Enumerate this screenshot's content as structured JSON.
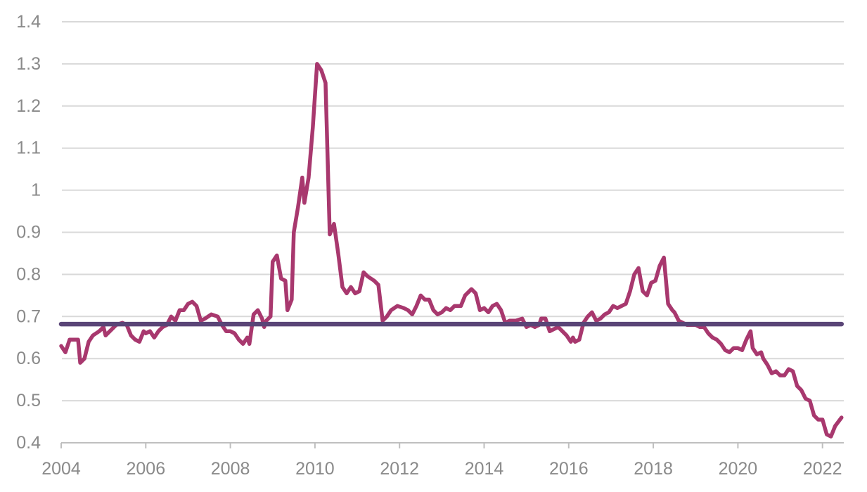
{
  "chart_data": {
    "type": "line",
    "title": "",
    "xlabel": "",
    "ylabel": "",
    "xlim": [
      2004,
      2022.45
    ],
    "ylim": [
      0.4,
      1.4
    ],
    "yticks": [
      "0.4",
      "0.5",
      "0.6",
      "0.7",
      "0.8",
      "0.9",
      "1",
      "1.1",
      "1.2",
      "1.3",
      "1.4"
    ],
    "xticks": [
      "2004",
      "2006",
      "2008",
      "2010",
      "2012",
      "2014",
      "2016",
      "2018",
      "2020",
      "2022"
    ],
    "grid": "horizontal",
    "legend": "none",
    "series": [
      {
        "color": "#a8386e",
        "points": [
          [
            2004.0,
            0.63
          ],
          [
            2004.1,
            0.615
          ],
          [
            2004.2,
            0.645
          ],
          [
            2004.3,
            0.645
          ],
          [
            2004.4,
            0.645
          ],
          [
            2004.45,
            0.59
          ],
          [
            2004.55,
            0.6
          ],
          [
            2004.65,
            0.64
          ],
          [
            2004.75,
            0.655
          ],
          [
            2004.9,
            0.665
          ],
          [
            2005.0,
            0.675
          ],
          [
            2005.05,
            0.655
          ],
          [
            2005.15,
            0.665
          ],
          [
            2005.3,
            0.68
          ],
          [
            2005.45,
            0.685
          ],
          [
            2005.55,
            0.68
          ],
          [
            2005.65,
            0.655
          ],
          [
            2005.75,
            0.645
          ],
          [
            2005.85,
            0.64
          ],
          [
            2005.95,
            0.665
          ],
          [
            2006.0,
            0.66
          ],
          [
            2006.1,
            0.665
          ],
          [
            2006.2,
            0.65
          ],
          [
            2006.3,
            0.665
          ],
          [
            2006.4,
            0.675
          ],
          [
            2006.5,
            0.68
          ],
          [
            2006.6,
            0.7
          ],
          [
            2006.7,
            0.69
          ],
          [
            2006.8,
            0.715
          ],
          [
            2006.9,
            0.715
          ],
          [
            2007.0,
            0.73
          ],
          [
            2007.1,
            0.735
          ],
          [
            2007.2,
            0.725
          ],
          [
            2007.3,
            0.69
          ],
          [
            2007.4,
            0.695
          ],
          [
            2007.55,
            0.705
          ],
          [
            2007.7,
            0.7
          ],
          [
            2007.8,
            0.68
          ],
          [
            2007.9,
            0.665
          ],
          [
            2008.0,
            0.665
          ],
          [
            2008.1,
            0.66
          ],
          [
            2008.2,
            0.645
          ],
          [
            2008.3,
            0.635
          ],
          [
            2008.4,
            0.65
          ],
          [
            2008.45,
            0.635
          ],
          [
            2008.55,
            0.705
          ],
          [
            2008.65,
            0.715
          ],
          [
            2008.75,
            0.695
          ],
          [
            2008.8,
            0.675
          ],
          [
            2008.85,
            0.69
          ],
          [
            2008.95,
            0.7
          ],
          [
            2009.0,
            0.83
          ],
          [
            2009.1,
            0.845
          ],
          [
            2009.2,
            0.79
          ],
          [
            2009.3,
            0.785
          ],
          [
            2009.35,
            0.715
          ],
          [
            2009.45,
            0.74
          ],
          [
            2009.5,
            0.9
          ],
          [
            2009.6,
            0.96
          ],
          [
            2009.7,
            1.03
          ],
          [
            2009.75,
            0.97
          ],
          [
            2009.85,
            1.03
          ],
          [
            2009.95,
            1.15
          ],
          [
            2010.05,
            1.3
          ],
          [
            2010.15,
            1.285
          ],
          [
            2010.25,
            1.255
          ],
          [
            2010.35,
            0.895
          ],
          [
            2010.45,
            0.92
          ],
          [
            2010.55,
            0.85
          ],
          [
            2010.65,
            0.77
          ],
          [
            2010.75,
            0.755
          ],
          [
            2010.85,
            0.77
          ],
          [
            2010.95,
            0.755
          ],
          [
            2011.05,
            0.76
          ],
          [
            2011.15,
            0.805
          ],
          [
            2011.25,
            0.795
          ],
          [
            2011.4,
            0.785
          ],
          [
            2011.5,
            0.775
          ],
          [
            2011.6,
            0.69
          ],
          [
            2011.7,
            0.7
          ],
          [
            2011.8,
            0.715
          ],
          [
            2011.95,
            0.725
          ],
          [
            2012.1,
            0.72
          ],
          [
            2012.2,
            0.715
          ],
          [
            2012.3,
            0.705
          ],
          [
            2012.4,
            0.725
          ],
          [
            2012.5,
            0.75
          ],
          [
            2012.6,
            0.74
          ],
          [
            2012.7,
            0.74
          ],
          [
            2012.8,
            0.715
          ],
          [
            2012.9,
            0.705
          ],
          [
            2013.0,
            0.71
          ],
          [
            2013.1,
            0.72
          ],
          [
            2013.2,
            0.715
          ],
          [
            2013.3,
            0.725
          ],
          [
            2013.45,
            0.725
          ],
          [
            2013.55,
            0.75
          ],
          [
            2013.7,
            0.765
          ],
          [
            2013.8,
            0.755
          ],
          [
            2013.9,
            0.715
          ],
          [
            2014.0,
            0.72
          ],
          [
            2014.1,
            0.71
          ],
          [
            2014.2,
            0.725
          ],
          [
            2014.3,
            0.73
          ],
          [
            2014.4,
            0.715
          ],
          [
            2014.5,
            0.685
          ],
          [
            2014.6,
            0.69
          ],
          [
            2014.75,
            0.69
          ],
          [
            2014.9,
            0.695
          ],
          [
            2015.0,
            0.675
          ],
          [
            2015.1,
            0.68
          ],
          [
            2015.2,
            0.675
          ],
          [
            2015.3,
            0.68
          ],
          [
            2015.35,
            0.695
          ],
          [
            2015.45,
            0.695
          ],
          [
            2015.55,
            0.665
          ],
          [
            2015.65,
            0.67
          ],
          [
            2015.75,
            0.675
          ],
          [
            2015.85,
            0.665
          ],
          [
            2015.95,
            0.655
          ],
          [
            2016.05,
            0.64
          ],
          [
            2016.1,
            0.65
          ],
          [
            2016.15,
            0.64
          ],
          [
            2016.25,
            0.645
          ],
          [
            2016.35,
            0.685
          ],
          [
            2016.45,
            0.7
          ],
          [
            2016.55,
            0.71
          ],
          [
            2016.65,
            0.69
          ],
          [
            2016.75,
            0.695
          ],
          [
            2016.85,
            0.705
          ],
          [
            2016.95,
            0.71
          ],
          [
            2017.05,
            0.725
          ],
          [
            2017.15,
            0.72
          ],
          [
            2017.25,
            0.725
          ],
          [
            2017.35,
            0.73
          ],
          [
            2017.45,
            0.76
          ],
          [
            2017.55,
            0.8
          ],
          [
            2017.65,
            0.815
          ],
          [
            2017.75,
            0.76
          ],
          [
            2017.85,
            0.75
          ],
          [
            2017.95,
            0.78
          ],
          [
            2018.05,
            0.785
          ],
          [
            2018.15,
            0.82
          ],
          [
            2018.25,
            0.84
          ],
          [
            2018.35,
            0.73
          ],
          [
            2018.45,
            0.715
          ],
          [
            2018.5,
            0.71
          ],
          [
            2018.6,
            0.69
          ],
          [
            2018.7,
            0.685
          ],
          [
            2018.8,
            0.68
          ],
          [
            2018.9,
            0.68
          ],
          [
            2019.0,
            0.68
          ],
          [
            2019.1,
            0.675
          ],
          [
            2019.2,
            0.675
          ],
          [
            2019.3,
            0.66
          ],
          [
            2019.4,
            0.65
          ],
          [
            2019.5,
            0.645
          ],
          [
            2019.6,
            0.635
          ],
          [
            2019.7,
            0.62
          ],
          [
            2019.8,
            0.615
          ],
          [
            2019.9,
            0.625
          ],
          [
            2020.0,
            0.625
          ],
          [
            2020.1,
            0.62
          ],
          [
            2020.2,
            0.645
          ],
          [
            2020.3,
            0.665
          ],
          [
            2020.35,
            0.625
          ],
          [
            2020.45,
            0.61
          ],
          [
            2020.55,
            0.615
          ],
          [
            2020.6,
            0.6
          ],
          [
            2020.7,
            0.585
          ],
          [
            2020.8,
            0.565
          ],
          [
            2020.9,
            0.57
          ],
          [
            2021.0,
            0.56
          ],
          [
            2021.1,
            0.56
          ],
          [
            2021.2,
            0.575
          ],
          [
            2021.3,
            0.57
          ],
          [
            2021.4,
            0.535
          ],
          [
            2021.5,
            0.525
          ],
          [
            2021.6,
            0.505
          ],
          [
            2021.7,
            0.5
          ],
          [
            2021.8,
            0.465
          ],
          [
            2021.9,
            0.455
          ],
          [
            2022.0,
            0.455
          ],
          [
            2022.1,
            0.42
          ],
          [
            2022.2,
            0.415
          ],
          [
            2022.3,
            0.44
          ],
          [
            2022.45,
            0.46
          ]
        ]
      },
      {
        "color": "#5a4577",
        "points": [
          [
            2004.0,
            0.682
          ],
          [
            2022.45,
            0.682
          ]
        ]
      }
    ]
  }
}
